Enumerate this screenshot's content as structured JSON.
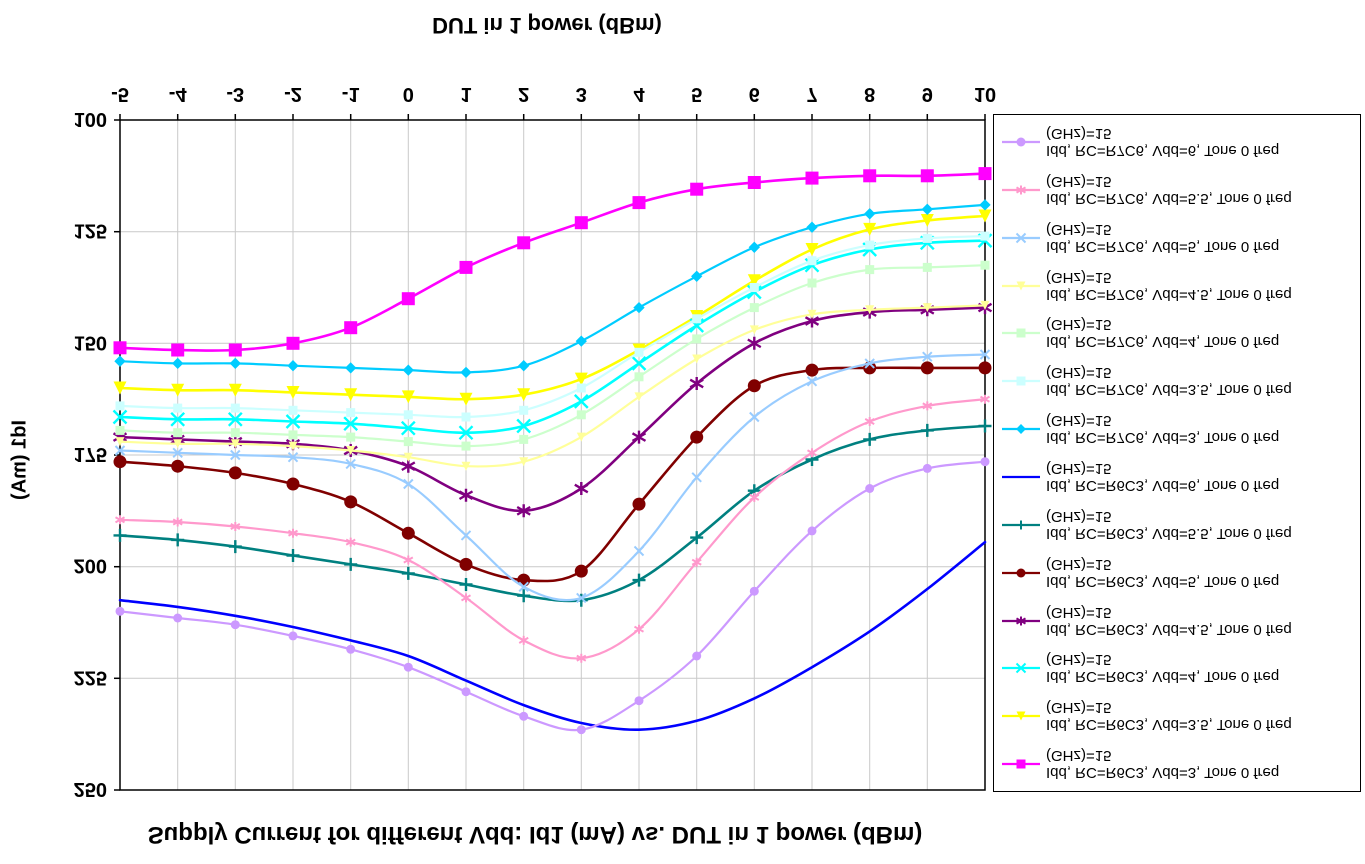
{
  "chart_data": {
    "type": "line",
    "title": "Supply Current for different Vdd: Id1 (mA) vs. DUT in 1 power (dBm)",
    "xlabel": "DUT in 1 power (dBm)",
    "ylabel": "Id1 (mA)",
    "x": [
      -5,
      -4,
      -3,
      -2,
      -1,
      0,
      1,
      2,
      3,
      4,
      5,
      6,
      7,
      8,
      9,
      10
    ],
    "xticks": [
      -5,
      -4,
      -3,
      -2,
      -1,
      0,
      1,
      2,
      3,
      4,
      5,
      6,
      7,
      8,
      9,
      10
    ],
    "yticks": [
      100,
      125,
      150,
      175,
      200,
      225,
      250
    ],
    "xlim": [
      -5,
      10
    ],
    "ylim": [
      100,
      250
    ],
    "grid": true,
    "gridline_color": "#c9c9c9",
    "axis_color": "#000000",
    "background_color": "#ffffff",
    "legend_position": "right",
    "flipped_vertically": true,
    "series": [
      {
        "label_line1": "Idd, RC=R6C3, Vdd=3, Tone 0 freq",
        "label_line2": "(GHz)=15",
        "color": "#FF00FF",
        "marker": "square",
        "values": [
          151,
          151.5,
          151.5,
          150,
          146.5,
          140,
          133,
          127.5,
          123,
          118.5,
          115.5,
          114,
          113,
          112.5,
          112.5,
          112
        ]
      },
      {
        "label_line1": "Idd, RC=R6C3, Vdd=3.5, Tone 0 freq",
        "label_line2": "(GHz)=15",
        "color": "#FFFF00",
        "marker": "triangle",
        "values": [
          160,
          160.5,
          160.5,
          161,
          161.5,
          162,
          162.5,
          161.5,
          158,
          151.5,
          144,
          136,
          129,
          124.5,
          122.5,
          121.5
        ]
      },
      {
        "label_line1": "Idd, RC=R6C3, Vdd=4, Tone 0 freq",
        "label_line2": "(GHz)=15",
        "color": "#00FFFF",
        "marker": "x",
        "values": [
          166.5,
          167,
          167,
          167.5,
          168,
          169,
          170,
          168.5,
          163,
          154.5,
          146,
          138.5,
          132.5,
          129,
          127.5,
          127
        ]
      },
      {
        "label_line1": "Idd, RC=R6C3, Vdd=4.5, Tone 0 freq",
        "label_line2": "(GHz)=15",
        "color": "#800080",
        "marker": "asterisk",
        "values": [
          171,
          171.5,
          172,
          172.5,
          174,
          177.5,
          184,
          187.5,
          182.5,
          171,
          159,
          150,
          145,
          143,
          142.5,
          142
        ]
      },
      {
        "label_line1": "Idd, RC=R6C3, Vdd=5, Tone 0 freq",
        "label_line2": "(GHz)=15",
        "color": "#800000",
        "marker": "circle",
        "values": [
          176.5,
          177.5,
          179,
          181.5,
          185.5,
          192.5,
          199.5,
          203,
          201,
          186,
          171,
          159.5,
          156,
          155.5,
          155.5,
          155.5
        ]
      },
      {
        "label_line1": "Idd, RC=R6C3, Vdd=5.5, Tone 0 freq",
        "label_line2": "(GHz)=15",
        "color": "#008080",
        "marker": "plus",
        "values": [
          193,
          194,
          195.5,
          197.5,
          199.5,
          201.5,
          204,
          206.5,
          207.5,
          203,
          193.5,
          183,
          176,
          171.5,
          169.5,
          168.5
        ]
      },
      {
        "label_line1": "Idd, RC=R6C3, Vdd=6, Tone 0 freq",
        "label_line2": "(GHz)=15",
        "color": "#0000FF",
        "marker": "none",
        "values": [
          207.5,
          209,
          211,
          213.5,
          216.5,
          220,
          225.5,
          231,
          235,
          236.5,
          234.5,
          229.5,
          222.5,
          214.5,
          205,
          194.5
        ]
      },
      {
        "label_line1": "Idd, RC=R7C6, Vdd=3, Tone 0 freq",
        "label_line2": "(GHz)=15",
        "color": "#00CCFF",
        "marker": "diamond",
        "values": [
          154,
          154.5,
          154.5,
          155,
          155.5,
          156,
          156.5,
          155,
          149.5,
          142,
          135,
          128.5,
          124,
          121,
          120,
          119
        ]
      },
      {
        "label_line1": "Idd, RC=R7C6, Vdd=3.5, Tone 0 freq",
        "label_line2": "(GHz)=15",
        "color": "#CCFFFF",
        "marker": "square",
        "values": [
          164,
          164.5,
          164.5,
          165,
          165.5,
          166,
          166.5,
          165,
          160,
          152,
          144.5,
          137.5,
          131.5,
          128,
          126.5,
          126
        ]
      },
      {
        "label_line1": "Idd, RC=R7C6, Vdd=4, Tone 0 freq",
        "label_line2": "(GHz)=15",
        "color": "#CCFFCC",
        "marker": "square",
        "values": [
          169.5,
          170,
          170,
          170.5,
          171,
          172,
          173,
          171.5,
          166,
          157.5,
          149,
          142,
          136.5,
          133.5,
          133,
          132.5
        ]
      },
      {
        "label_line1": "Idd, RC=R7C6, Vdd=4.5, Tone 0 freq",
        "label_line2": "(GHz)=15",
        "color": "#FFFF99",
        "marker": "triangle",
        "values": [
          172,
          172.5,
          172.5,
          173,
          174,
          175.5,
          177.5,
          176.5,
          171,
          162,
          153.5,
          147,
          143.5,
          142.5,
          142,
          141.5
        ]
      },
      {
        "label_line1": "Idd, RC=R7C6, Vdd=5, Tone 0 freq",
        "label_line2": "(GHz)=15",
        "color": "#99CCFF",
        "marker": "x",
        "values": [
          174,
          174.5,
          175,
          175.5,
          177,
          181.5,
          193,
          204.5,
          207,
          196.5,
          180,
          166.5,
          158.5,
          154.5,
          153,
          152.5
        ]
      },
      {
        "label_line1": "Idd, RC=R7C6, Vdd=5.5, Tone 0 freq",
        "label_line2": "(GHz)=15",
        "color": "#FF99CC",
        "marker": "asterisk",
        "values": [
          189.5,
          190,
          191,
          192.5,
          194.5,
          198.5,
          207,
          216.5,
          220.5,
          214,
          199,
          184.5,
          174.5,
          167.5,
          164,
          162.5
        ]
      },
      {
        "label_line1": "Idd, RC=R7C6, Vdd=6, Tone 0 freq",
        "label_line2": "(GHz)=15",
        "color": "#CC99FF",
        "marker": "circle",
        "values": [
          210,
          211.5,
          213,
          215.5,
          218.5,
          222.5,
          228,
          233.5,
          236.5,
          230,
          220,
          205.5,
          192,
          182.5,
          178,
          176.5
        ]
      }
    ]
  }
}
